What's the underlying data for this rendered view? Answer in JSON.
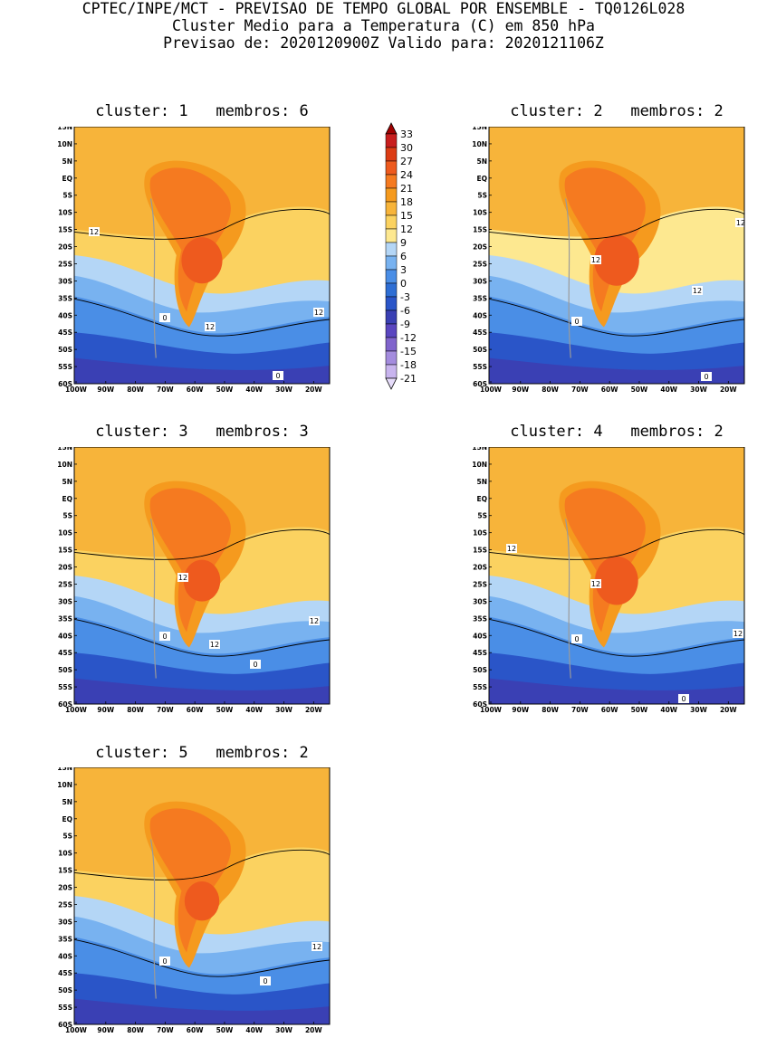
{
  "header": {
    "line1": "CPTEC/INPE/MCT - PREVISAO DE TEMPO GLOBAL POR ENSEMBLE - TQ0126L028",
    "line2": "Cluster Medio para a Temperatura (C) em 850 hPa",
    "line3": "Previsao de: 2020120900Z    Valido para: 2020121106Z"
  },
  "colorbar": {
    "levels": [
      "33",
      "30",
      "27",
      "24",
      "21",
      "18",
      "15",
      "12",
      "9",
      "6",
      "3",
      "0",
      "-3",
      "-6",
      "-9",
      "-12",
      "-15",
      "-18",
      "-21"
    ],
    "colors": [
      "#a00000",
      "#c81e1e",
      "#dc3c14",
      "#ee5a1e",
      "#f57a20",
      "#f59a1e",
      "#f7b43a",
      "#fbd260",
      "#fde890",
      "#b4d6f6",
      "#78b2f0",
      "#4a8ee6",
      "#2e6ed4",
      "#2a55c8",
      "#3a40b4",
      "#5a46c0",
      "#8064cc",
      "#a48cde",
      "#c8b4ee",
      "#e6dcfa"
    ]
  },
  "axes": {
    "lat_ticks": [
      "15N",
      "10N",
      "5N",
      "EQ",
      "5S",
      "10S",
      "15S",
      "20S",
      "25S",
      "30S",
      "35S",
      "40S",
      "45S",
      "50S",
      "55S",
      "60S"
    ],
    "lon_ticks": [
      "100W",
      "90W",
      "80W",
      "70W",
      "60W",
      "50W",
      "40W",
      "30W",
      "20W"
    ]
  },
  "panels": [
    {
      "cluster_label": "cluster:",
      "cluster": "1",
      "membros_label": "membros:",
      "membros": "6",
      "contour_labels": [
        "12",
        "12",
        "12",
        "0",
        "0"
      ]
    },
    {
      "cluster_label": "cluster:",
      "cluster": "2",
      "membros_label": "membros:",
      "membros": "2",
      "contour_labels": [
        "12",
        "12",
        "12",
        "0",
        "0"
      ]
    },
    {
      "cluster_label": "cluster:",
      "cluster": "3",
      "membros_label": "membros:",
      "membros": "3",
      "contour_labels": [
        "12",
        "12",
        "12",
        "0",
        "0"
      ]
    },
    {
      "cluster_label": "cluster:",
      "cluster": "4",
      "membros_label": "membros:",
      "membros": "2",
      "contour_labels": [
        "12",
        "12",
        "12",
        "0",
        "0"
      ]
    },
    {
      "cluster_label": "cluster:",
      "cluster": "5",
      "membros_label": "membros:",
      "membros": "2",
      "contour_labels": [
        "12",
        "0",
        "0"
      ]
    }
  ]
}
